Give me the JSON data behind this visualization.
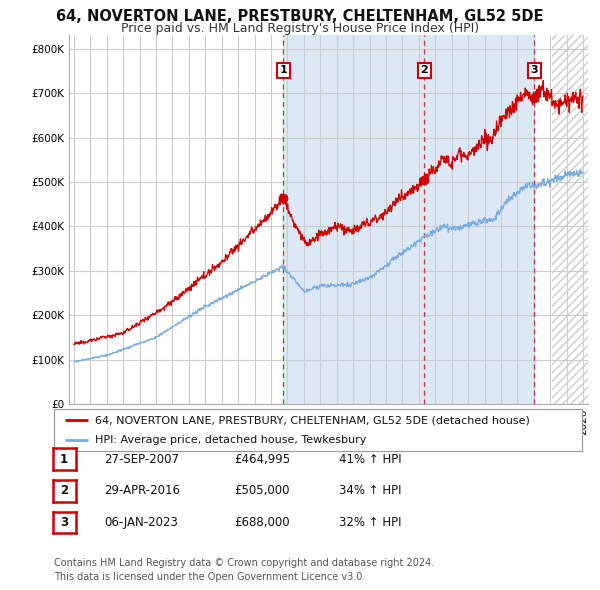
{
  "title": "64, NOVERTON LANE, PRESTBURY, CHELTENHAM, GL52 5DE",
  "subtitle": "Price paid vs. HM Land Registry's House Price Index (HPI)",
  "ylim": [
    0,
    830000
  ],
  "yticks": [
    0,
    100000,
    200000,
    300000,
    400000,
    500000,
    600000,
    700000,
    800000
  ],
  "ytick_labels": [
    "£0",
    "£100K",
    "£200K",
    "£300K",
    "£400K",
    "£500K",
    "£600K",
    "£700K",
    "£800K"
  ],
  "background_color": "#ffffff",
  "plot_bg_color": "#ffffff",
  "grid_color": "#cccccc",
  "red_color": "#cc0000",
  "blue_color": "#7aaddd",
  "shade_color": "#dce8f5",
  "hatch_color": "#cccccc",
  "sales": [
    {
      "date_num": 2007.74,
      "price": 464995,
      "label": "1"
    },
    {
      "date_num": 2016.33,
      "price": 505000,
      "label": "2"
    },
    {
      "date_num": 2023.02,
      "price": 688000,
      "label": "3"
    }
  ],
  "legend_label_red": "64, NOVERTON LANE, PRESTBURY, CHELTENHAM, GL52 5DE (detached house)",
  "legend_label_blue": "HPI: Average price, detached house, Tewkesbury",
  "table_rows": [
    [
      "1",
      "27-SEP-2007",
      "£464,995",
      "41% ↑ HPI"
    ],
    [
      "2",
      "29-APR-2016",
      "£505,000",
      "34% ↑ HPI"
    ],
    [
      "3",
      "06-JAN-2023",
      "£688,000",
      "32% ↑ HPI"
    ]
  ],
  "footnote": "Contains HM Land Registry data © Crown copyright and database right 2024.\nThis data is licensed under the Open Government Licence v3.0.",
  "title_fontsize": 10.5,
  "subtitle_fontsize": 9,
  "axis_fontsize": 7.5,
  "legend_fontsize": 8,
  "table_fontsize": 8.5,
  "footnote_fontsize": 7,
  "xlim_min": 1994.7,
  "xlim_max": 2026.3,
  "hatch_start": 2024.08
}
